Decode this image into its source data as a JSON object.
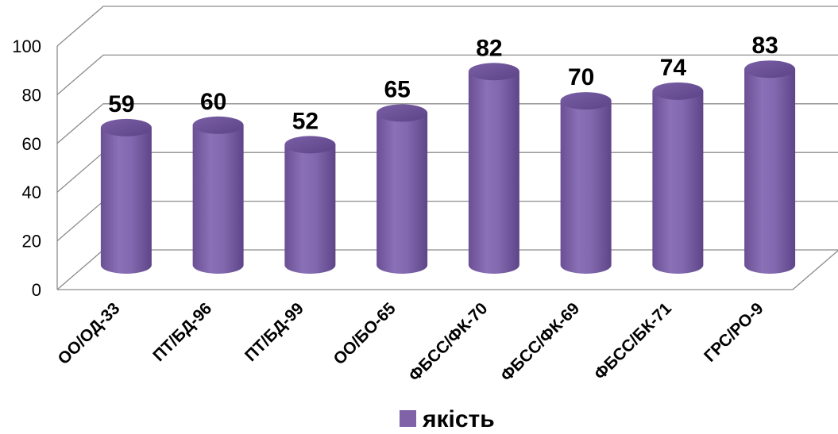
{
  "chart_data": {
    "type": "bar",
    "style": "3d-cylinder",
    "categories": [
      "ОО/ОД-33",
      "ПТ/БД-96",
      "ПТ/БД-99",
      "ОО/БО-65",
      "ФБСС/ФК-70",
      "ФБСС/ФК-69",
      "ФБСС/БК-71",
      "ГРС/РО-9"
    ],
    "series": [
      {
        "name": "якість",
        "values": [
          59,
          60,
          52,
          65,
          82,
          70,
          74,
          83
        ],
        "color": "#7f62a8"
      }
    ],
    "data_labels": [
      "59",
      "60",
      "52",
      "65",
      "82",
      "70",
      "74",
      "83"
    ],
    "y_ticks": [
      "0",
      "20",
      "40",
      "60",
      "80",
      "100"
    ],
    "ylim": [
      0,
      100
    ],
    "grid": true,
    "legend_position": "bottom",
    "title": "",
    "xlabel": "",
    "ylabel": ""
  }
}
